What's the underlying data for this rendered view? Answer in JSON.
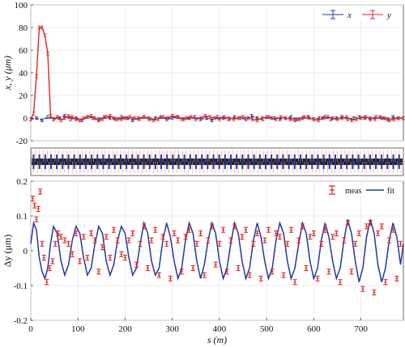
{
  "figure": {
    "colors": {
      "x_series": "#1f3aa0",
      "y_series": "#e0261e",
      "lattice_fill": "#222222",
      "lattice_ticks": "#f29a86",
      "lattice_ticks_dark": "#2a3aa0"
    }
  },
  "chart_data": [
    {
      "type": "line",
      "panel": "top",
      "ylabel": "x, y (μm)",
      "xlim": [
        0,
        790
      ],
      "ylim": [
        -20,
        100
      ],
      "yticks": [
        -20,
        0,
        20,
        40,
        60,
        80,
        100
      ],
      "grid": true,
      "legend": {
        "placement": "top-right",
        "entries": [
          "x",
          "y"
        ]
      },
      "series": [
        {
          "name": "x",
          "error_bars": true,
          "x": [
            0,
            12,
            24,
            36,
            48,
            60,
            72,
            84,
            96,
            108,
            120,
            132,
            144,
            156,
            168,
            180,
            192,
            204,
            216,
            228,
            240,
            252,
            264,
            276,
            288,
            300,
            312,
            324,
            336,
            348,
            360,
            372,
            384,
            396,
            408,
            420,
            432,
            444,
            456,
            468,
            480,
            492,
            504,
            516,
            528,
            540,
            552,
            564,
            576,
            588,
            600,
            612,
            624,
            636,
            648,
            660,
            672,
            684,
            696,
            708,
            720,
            732,
            744,
            756,
            768,
            780,
            790
          ],
          "y": [
            -1,
            0,
            -2,
            1,
            -1,
            0,
            2,
            -1,
            0,
            -2,
            1,
            0,
            -1,
            1,
            0,
            -1,
            1,
            0,
            -2,
            0,
            1,
            -1,
            0,
            1,
            -1,
            0,
            1,
            -1,
            0,
            1,
            -1,
            0,
            -2,
            1,
            0,
            -1,
            1,
            0,
            -1,
            2,
            0,
            -1,
            1,
            0,
            -1,
            0,
            1,
            -1,
            0,
            1,
            -1,
            0,
            1,
            -1,
            0,
            1,
            -1,
            0,
            1,
            0,
            -1,
            1,
            0,
            -1,
            1,
            0,
            0
          ]
        },
        {
          "name": "y",
          "error_bars": true,
          "x": [
            0,
            6,
            12,
            18,
            24,
            30,
            36,
            42,
            48,
            56,
            64,
            72,
            80,
            88,
            96,
            104,
            112,
            120,
            128,
            136,
            144,
            152,
            160,
            168,
            176,
            184,
            192,
            200,
            210,
            220,
            230,
            240,
            250,
            260,
            270,
            280,
            290,
            300,
            310,
            320,
            330,
            340,
            350,
            360,
            370,
            380,
            390,
            400,
            410,
            420,
            430,
            440,
            450,
            460,
            470,
            480,
            490,
            500,
            510,
            520,
            530,
            540,
            550,
            560,
            570,
            580,
            590,
            600,
            610,
            620,
            630,
            640,
            650,
            660,
            670,
            680,
            690,
            700,
            710,
            720,
            730,
            740,
            750,
            760,
            770,
            780,
            790
          ],
          "y": [
            -1,
            4,
            37,
            80,
            80,
            73,
            57,
            2,
            -1,
            1,
            -2,
            0,
            2,
            1,
            -1,
            -2,
            0,
            1,
            2,
            0,
            -2,
            -1,
            1,
            2,
            0,
            -1,
            -1,
            0,
            1,
            0,
            -1,
            1,
            0,
            -2,
            -1,
            1,
            0,
            2,
            1,
            -1,
            0,
            1,
            -1,
            0,
            2,
            1,
            0,
            -1,
            1,
            0,
            -1,
            0,
            1,
            0,
            -1,
            -2,
            0,
            1,
            0,
            -1,
            1,
            0,
            -1,
            -2,
            -1,
            1,
            0,
            -1,
            -2,
            0,
            1,
            0,
            -1,
            0,
            1,
            -2,
            -1,
            0,
            1,
            0,
            -1,
            1,
            0,
            -2,
            -1,
            0,
            0
          ]
        }
      ]
    },
    {
      "type": "bar",
      "panel": "lattice",
      "xlim": [
        0,
        790
      ],
      "ylabel": "",
      "description_free": true
    },
    {
      "type": "line",
      "panel": "bottom",
      "xlabel": "s (m)",
      "ylabel": "Δy (μm)",
      "xlim": [
        0,
        790
      ],
      "ylim": [
        -0.2,
        0.2
      ],
      "xticks": [
        0,
        100,
        200,
        300,
        400,
        500,
        600,
        700
      ],
      "yticks": [
        -0.2,
        -0.1,
        0,
        0.1,
        0.2
      ],
      "grid": true,
      "legend": {
        "placement": "top-right",
        "entries": [
          "meas",
          "fit"
        ]
      },
      "series": [
        {
          "name": "meas",
          "marker": "errorbar",
          "x": [
            4,
            8,
            12,
            16,
            20,
            24,
            28,
            34,
            40,
            46,
            52,
            58,
            64,
            72,
            80,
            88,
            96,
            104,
            112,
            120,
            128,
            136,
            144,
            152,
            160,
            168,
            176,
            184,
            192,
            200,
            208,
            216,
            224,
            232,
            240,
            248,
            256,
            264,
            272,
            280,
            288,
            296,
            304,
            312,
            320,
            328,
            336,
            344,
            352,
            360,
            368,
            376,
            384,
            392,
            400,
            408,
            416,
            424,
            432,
            440,
            448,
            456,
            464,
            472,
            480,
            488,
            496,
            504,
            512,
            520,
            528,
            536,
            544,
            552,
            560,
            568,
            576,
            584,
            592,
            600,
            608,
            616,
            624,
            632,
            640,
            648,
            656,
            664,
            672,
            680,
            688,
            696,
            704,
            712,
            720,
            728,
            736,
            744,
            752,
            760,
            768,
            776,
            784
          ],
          "y": [
            0.15,
            0.13,
            0.09,
            0.12,
            0.17,
            0.02,
            -0.02,
            -0.09,
            -0.05,
            -0.03,
            0.02,
            0.05,
            0.04,
            0.03,
            0.02,
            -0.01,
            0.05,
            -0.03,
            0.04,
            -0.02,
            0.05,
            0.03,
            -0.06,
            0.01,
            0.04,
            -0.02,
            0.06,
            0.03,
            -0.01,
            -0.02,
            0.03,
            0.05,
            -0.04,
            0.02,
            0.07,
            -0.05,
            0.03,
            0.06,
            -0.07,
            0.04,
            0.02,
            -0.08,
            0.05,
            0.03,
            -0.06,
            0.04,
            0.06,
            -0.05,
            0.02,
            0.05,
            -0.07,
            0.03,
            0.07,
            -0.04,
            0.02,
            0.06,
            -0.06,
            0.03,
            0.07,
            -0.05,
            0.04,
            0.06,
            -0.07,
            0.02,
            0.05,
            -0.08,
            0.03,
            0.06,
            -0.06,
            0.05,
            0.04,
            -0.07,
            0.02,
            0.06,
            -0.09,
            0.03,
            0.07,
            -0.05,
            0.04,
            0.05,
            -0.08,
            0.02,
            0.06,
            -0.06,
            0.04,
            0.05,
            -0.09,
            0.03,
            0.08,
            -0.06,
            0.02,
            0.05,
            -0.11,
            0.07,
            0.08,
            -0.12,
            0.05,
            0.07,
            -0.09,
            0.03,
            0.06,
            -0.08,
            0.02
          ]
        },
        {
          "name": "fit",
          "marker": "line",
          "x": [
            0,
            6,
            12,
            18,
            24,
            30,
            36,
            42,
            48,
            56,
            64,
            72,
            80,
            88,
            96,
            104,
            112,
            120,
            128,
            136,
            144,
            152,
            160,
            168,
            176,
            184,
            192,
            200,
            208,
            216,
            224,
            232,
            240,
            248,
            256,
            264,
            272,
            280,
            288,
            296,
            304,
            312,
            320,
            328,
            336,
            344,
            352,
            360,
            368,
            376,
            384,
            392,
            400,
            408,
            416,
            424,
            432,
            440,
            448,
            456,
            464,
            472,
            480,
            488,
            496,
            504,
            512,
            520,
            528,
            536,
            544,
            552,
            560,
            568,
            576,
            584,
            592,
            600,
            608,
            616,
            624,
            632,
            640,
            648,
            656,
            664,
            672,
            680,
            688,
            696,
            704,
            712,
            720,
            728,
            736,
            744,
            752,
            760,
            768,
            776,
            784,
            790
          ],
          "y": [
            0.02,
            0.08,
            0.06,
            -0.02,
            -0.06,
            -0.08,
            -0.05,
            0.02,
            0.07,
            0.05,
            -0.03,
            -0.07,
            -0.04,
            0.03,
            0.07,
            0.05,
            -0.02,
            -0.07,
            -0.05,
            0.02,
            0.07,
            0.05,
            -0.03,
            -0.07,
            -0.04,
            0.03,
            0.07,
            0.05,
            -0.02,
            -0.07,
            -0.05,
            0.02,
            0.08,
            0.05,
            -0.03,
            -0.07,
            -0.05,
            0.03,
            0.08,
            0.04,
            -0.03,
            -0.08,
            -0.05,
            0.03,
            0.08,
            0.05,
            -0.03,
            -0.08,
            -0.04,
            0.03,
            0.08,
            0.05,
            -0.03,
            -0.08,
            -0.05,
            0.02,
            0.08,
            0.05,
            -0.03,
            -0.08,
            -0.05,
            0.03,
            0.08,
            0.04,
            -0.03,
            -0.08,
            -0.05,
            0.03,
            0.08,
            0.05,
            -0.03,
            -0.08,
            -0.05,
            0.02,
            0.08,
            0.05,
            -0.03,
            -0.08,
            -0.05,
            0.03,
            0.08,
            0.04,
            -0.03,
            -0.08,
            -0.05,
            0.03,
            0.09,
            0.05,
            -0.03,
            -0.09,
            -0.05,
            0.04,
            0.09,
            0.05,
            -0.04,
            -0.09,
            -0.05,
            0.03,
            0.08,
            0.04,
            -0.04,
            0.02
          ]
        }
      ]
    }
  ]
}
